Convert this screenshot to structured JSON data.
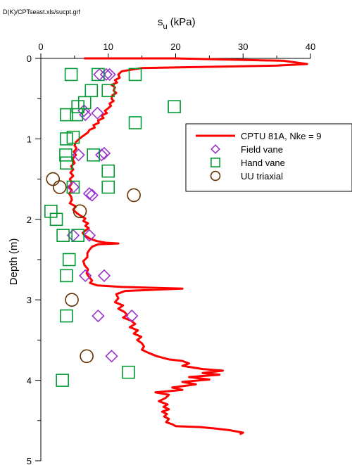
{
  "file_note": "D(K)/CPTseast.xls/sucpt.grf",
  "chart_data": {
    "type": "scatter",
    "title": "",
    "xlabel": "s",
    "xlabel_sub": "u",
    "xlabel_unit": " (kPa)",
    "ylabel": "Depth (m)",
    "xlim": [
      0,
      40
    ],
    "ylim": [
      0,
      5
    ],
    "x_ticks": [
      "0",
      "10",
      "20",
      "30",
      "40"
    ],
    "y_ticks": [
      "0",
      "1",
      "2",
      "3",
      "4",
      "5"
    ],
    "x_axis_position": "top",
    "y_reversed": true,
    "grid": false,
    "legend_position": "top-right",
    "series": [
      {
        "name": "CPTU 81A, Nke = 9",
        "kind": "line",
        "color": "#ff0000",
        "points": [
          [
            6.4,
            0.0
          ],
          [
            20.0,
            0.0
          ],
          [
            36.0,
            0.03
          ],
          [
            39.5,
            0.07
          ],
          [
            35.0,
            0.09
          ],
          [
            15.0,
            0.12
          ],
          [
            12.0,
            0.16
          ],
          [
            11.5,
            0.2
          ],
          [
            11.7,
            0.24
          ],
          [
            11.0,
            0.27
          ],
          [
            11.3,
            0.3
          ],
          [
            10.5,
            0.33
          ],
          [
            11.0,
            0.36
          ],
          [
            10.8,
            0.4
          ],
          [
            11.2,
            0.43
          ],
          [
            10.6,
            0.46
          ],
          [
            10.5,
            0.5
          ],
          [
            10.8,
            0.53
          ],
          [
            10.2,
            0.56
          ],
          [
            10.4,
            0.59
          ],
          [
            10.0,
            0.62
          ],
          [
            9.5,
            0.65
          ],
          [
            9.8,
            0.68
          ],
          [
            9.0,
            0.71
          ],
          [
            9.3,
            0.74
          ],
          [
            8.5,
            0.77
          ],
          [
            8.6,
            0.8
          ],
          [
            7.8,
            0.83
          ],
          [
            8.0,
            0.86
          ],
          [
            7.2,
            0.89
          ],
          [
            7.0,
            0.92
          ],
          [
            6.5,
            0.95
          ],
          [
            6.0,
            0.98
          ],
          [
            5.6,
            1.01
          ],
          [
            5.2,
            1.04
          ],
          [
            5.0,
            1.08
          ],
          [
            5.3,
            1.12
          ],
          [
            4.9,
            1.16
          ],
          [
            5.2,
            1.2
          ],
          [
            4.7,
            1.25
          ],
          [
            5.0,
            1.3
          ],
          [
            4.5,
            1.34
          ],
          [
            4.8,
            1.38
          ],
          [
            4.4,
            1.42
          ],
          [
            4.8,
            1.46
          ],
          [
            4.3,
            1.5
          ],
          [
            4.6,
            1.55
          ],
          [
            4.2,
            1.6
          ],
          [
            4.6,
            1.64
          ],
          [
            4.2,
            1.68
          ],
          [
            4.5,
            1.72
          ],
          [
            4.6,
            1.76
          ],
          [
            4.3,
            1.8
          ],
          [
            5.2,
            1.84
          ],
          [
            4.8,
            1.88
          ],
          [
            5.3,
            1.92
          ],
          [
            6.0,
            1.96
          ],
          [
            6.6,
            1.99
          ],
          [
            6.3,
            2.02
          ],
          [
            7.0,
            2.05
          ],
          [
            6.6,
            2.08
          ],
          [
            7.1,
            2.11
          ],
          [
            6.6,
            2.14
          ],
          [
            6.2,
            2.17
          ],
          [
            6.5,
            2.2
          ],
          [
            7.3,
            2.24
          ],
          [
            8.3,
            2.27
          ],
          [
            9.6,
            2.29
          ],
          [
            11.5,
            2.3
          ],
          [
            8.5,
            2.31
          ],
          [
            7.6,
            2.34
          ],
          [
            7.2,
            2.38
          ],
          [
            6.9,
            2.42
          ],
          [
            6.9,
            2.47
          ],
          [
            6.3,
            2.52
          ],
          [
            6.5,
            2.57
          ],
          [
            7.0,
            2.62
          ],
          [
            6.8,
            2.67
          ],
          [
            7.2,
            2.72
          ],
          [
            7.6,
            2.76
          ],
          [
            7.3,
            2.79
          ],
          [
            8.3,
            2.82
          ],
          [
            12.0,
            2.84
          ],
          [
            21.0,
            2.86
          ],
          [
            12.5,
            2.89
          ],
          [
            11.2,
            2.93
          ],
          [
            11.5,
            2.98
          ],
          [
            11.0,
            3.03
          ],
          [
            12.2,
            3.07
          ],
          [
            11.5,
            3.11
          ],
          [
            12.4,
            3.15
          ],
          [
            12.8,
            3.19
          ],
          [
            12.2,
            3.22
          ],
          [
            13.4,
            3.26
          ],
          [
            14.0,
            3.3
          ],
          [
            13.2,
            3.34
          ],
          [
            14.4,
            3.38
          ],
          [
            13.8,
            3.42
          ],
          [
            14.9,
            3.46
          ],
          [
            14.3,
            3.5
          ],
          [
            15.0,
            3.54
          ],
          [
            15.3,
            3.58
          ],
          [
            15.0,
            3.62
          ],
          [
            16.0,
            3.66
          ],
          [
            17.2,
            3.7
          ],
          [
            19.0,
            3.74
          ],
          [
            21.0,
            3.76
          ],
          [
            22.0,
            3.79
          ],
          [
            21.0,
            3.82
          ],
          [
            24.0,
            3.86
          ],
          [
            27.0,
            3.88
          ],
          [
            24.0,
            3.91
          ],
          [
            26.5,
            3.93
          ],
          [
            22.0,
            3.96
          ],
          [
            25.0,
            3.99
          ],
          [
            21.0,
            4.02
          ],
          [
            23.0,
            4.05
          ],
          [
            19.5,
            4.09
          ],
          [
            21.0,
            4.12
          ],
          [
            17.0,
            4.15
          ],
          [
            19.0,
            4.18
          ],
          [
            18.5,
            4.22
          ],
          [
            17.5,
            4.26
          ],
          [
            18.8,
            4.3
          ],
          [
            18.2,
            4.33
          ],
          [
            19.0,
            4.36
          ],
          [
            18.0,
            4.39
          ],
          [
            18.7,
            4.42
          ],
          [
            18.3,
            4.45
          ],
          [
            19.0,
            4.48
          ],
          [
            18.6,
            4.52
          ],
          [
            19.6,
            4.55
          ],
          [
            20.0,
            4.57
          ],
          [
            23.5,
            4.58
          ],
          [
            26.0,
            4.6
          ],
          [
            28.0,
            4.62
          ],
          [
            30.0,
            4.65
          ],
          [
            29.5,
            4.67
          ]
        ]
      },
      {
        "name": "Field vane",
        "kind": "marker",
        "marker": "diamond",
        "color": "#9933cc",
        "points": [
          [
            8.7,
            0.2
          ],
          [
            9.7,
            0.2
          ],
          [
            10.2,
            0.2
          ],
          [
            6.4,
            0.65
          ],
          [
            6.6,
            0.7
          ],
          [
            8.4,
            0.68
          ],
          [
            5.6,
            1.2
          ],
          [
            9.0,
            1.2
          ],
          [
            9.4,
            1.18
          ],
          [
            4.8,
            1.6
          ],
          [
            7.2,
            1.68
          ],
          [
            7.6,
            1.7
          ],
          [
            4.8,
            2.2
          ],
          [
            7.2,
            2.2
          ],
          [
            6.6,
            2.7
          ],
          [
            9.4,
            2.7
          ],
          [
            8.5,
            3.2
          ],
          [
            13.5,
            3.2
          ],
          [
            10.5,
            3.7
          ]
        ]
      },
      {
        "name": "Hand vane",
        "kind": "marker",
        "marker": "square",
        "color": "#009933",
        "points": [
          [
            4.5,
            0.2
          ],
          [
            8.5,
            0.2
          ],
          [
            14.0,
            0.2
          ],
          [
            7.5,
            0.4
          ],
          [
            10.0,
            0.4
          ],
          [
            6.5,
            0.55
          ],
          [
            5.5,
            0.6
          ],
          [
            19.8,
            0.6
          ],
          [
            3.8,
            0.7
          ],
          [
            5.3,
            0.7
          ],
          [
            14.0,
            0.8
          ],
          [
            4.8,
            0.98
          ],
          [
            3.8,
            1.0
          ],
          [
            3.7,
            1.2
          ],
          [
            7.8,
            1.2
          ],
          [
            3.8,
            1.3
          ],
          [
            10.0,
            1.4
          ],
          [
            4.8,
            1.6
          ],
          [
            10.0,
            1.6
          ],
          [
            1.5,
            1.9
          ],
          [
            2.3,
            2.0
          ],
          [
            3.3,
            2.2
          ],
          [
            5.5,
            2.2
          ],
          [
            4.2,
            2.5
          ],
          [
            3.8,
            2.7
          ],
          [
            3.8,
            3.2
          ],
          [
            13.0,
            3.9
          ],
          [
            3.2,
            4.0
          ]
        ]
      },
      {
        "name": "UU triaxial",
        "kind": "marker",
        "marker": "circle",
        "color": "#663300",
        "points": [
          [
            1.8,
            1.5
          ],
          [
            2.8,
            1.6
          ],
          [
            13.8,
            1.7
          ],
          [
            5.8,
            1.9
          ],
          [
            4.6,
            3.0
          ],
          [
            6.8,
            3.7
          ]
        ]
      }
    ]
  }
}
